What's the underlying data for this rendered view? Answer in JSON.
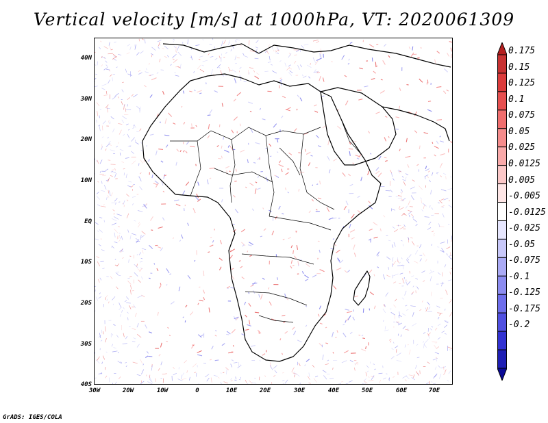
{
  "title": "Vertical velocity [m/s] at 1000hPa, VT: 2020061309",
  "map": {
    "region": "Africa and Arabian Peninsula",
    "lon_labels": [
      "30W",
      "20W",
      "10W",
      "0",
      "10E",
      "20E",
      "30E",
      "40E",
      "50E",
      "60E",
      "70E"
    ],
    "lat_labels": [
      "40N",
      "30N",
      "20N",
      "10N",
      "EQ",
      "10S",
      "20S",
      "30S",
      "40S"
    ]
  },
  "legend": {
    "labels": [
      "0.175",
      "0.15",
      "0.125",
      "0.1",
      "0.075",
      "0.05",
      "0.025",
      "0.0125",
      "0.005",
      "-0.005",
      "-0.0125",
      "-0.025",
      "-0.05",
      "-0.075",
      "-0.1",
      "-0.125",
      "-0.175",
      "-0.2"
    ],
    "colors": [
      "#b41e1e",
      "#c83232",
      "#dc3c3c",
      "#e65050",
      "#f06e6e",
      "#f58c8c",
      "#faaaaa",
      "#fcc8c8",
      "#fee6e6",
      "#ffffff",
      "#e6e6fe",
      "#c8c8fa",
      "#aaaaf5",
      "#8c8cf0",
      "#6e6eeb",
      "#5050e1",
      "#3232d2",
      "#1e1eb4",
      "#0a0a96"
    ]
  },
  "footer": "GrADS: IGES/COLA"
}
